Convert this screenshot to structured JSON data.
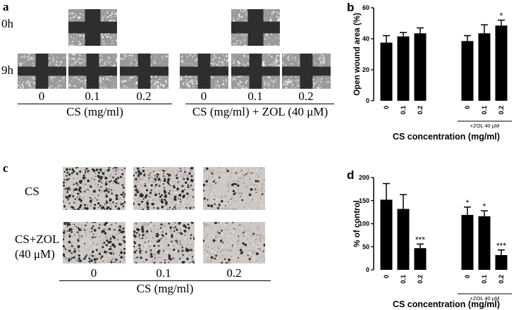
{
  "panel_a": {
    "label": "a",
    "row_labels": [
      "0h",
      "9h"
    ],
    "ticks_left": [
      "0",
      "0.1",
      "0.2"
    ],
    "ticks_right": [
      "0",
      "0.1",
      "0.2"
    ],
    "group_left": "CS (mg/ml)",
    "group_right": "CS (mg/ml) + ZOL (40 μM)"
  },
  "panel_c": {
    "label": "c",
    "row_labels": [
      "CS",
      "CS+ZOL",
      "(40 μM)"
    ],
    "ticks": [
      "0",
      "0.1",
      "0.2"
    ],
    "axis_label": "CS (mg/ml)"
  },
  "chart_data": [
    {
      "id": "b",
      "panel_label": "b",
      "type": "bar",
      "categories": [
        "0",
        "0.1",
        "0.2",
        "0",
        "0.1",
        "0.2"
      ],
      "values": [
        37.5,
        41.5,
        43.5,
        38.5,
        43.5,
        48.5
      ],
      "errors": [
        4.5,
        2.5,
        3.5,
        3.5,
        5.5,
        3.5
      ],
      "significance": [
        "",
        "",
        "",
        "",
        "",
        "*"
      ],
      "ylabel": "Open wound area (%)",
      "xlabel": "CS concentration (mg/ml)",
      "group_label": "+ZOL 40 μM",
      "ylim": [
        0,
        60
      ],
      "yticks": [
        "0",
        "20",
        "40",
        "60"
      ]
    },
    {
      "id": "d",
      "panel_label": "d",
      "type": "bar",
      "categories": [
        "0",
        "0.1",
        "0.2",
        "0",
        "0.1",
        "0.2"
      ],
      "values": [
        152,
        132,
        47,
        119,
        116,
        32
      ],
      "errors": [
        35,
        31,
        9,
        17,
        12,
        11
      ],
      "significance": [
        "",
        "",
        "***",
        "*",
        "*",
        "***"
      ],
      "ylabel": "% of control",
      "xlabel": "CS concentration (mg/ml)",
      "group_label": "+ZOL 40 μM",
      "ylim": [
        0,
        200
      ],
      "yticks": [
        "0",
        "50",
        "100",
        "150",
        "200"
      ]
    }
  ]
}
